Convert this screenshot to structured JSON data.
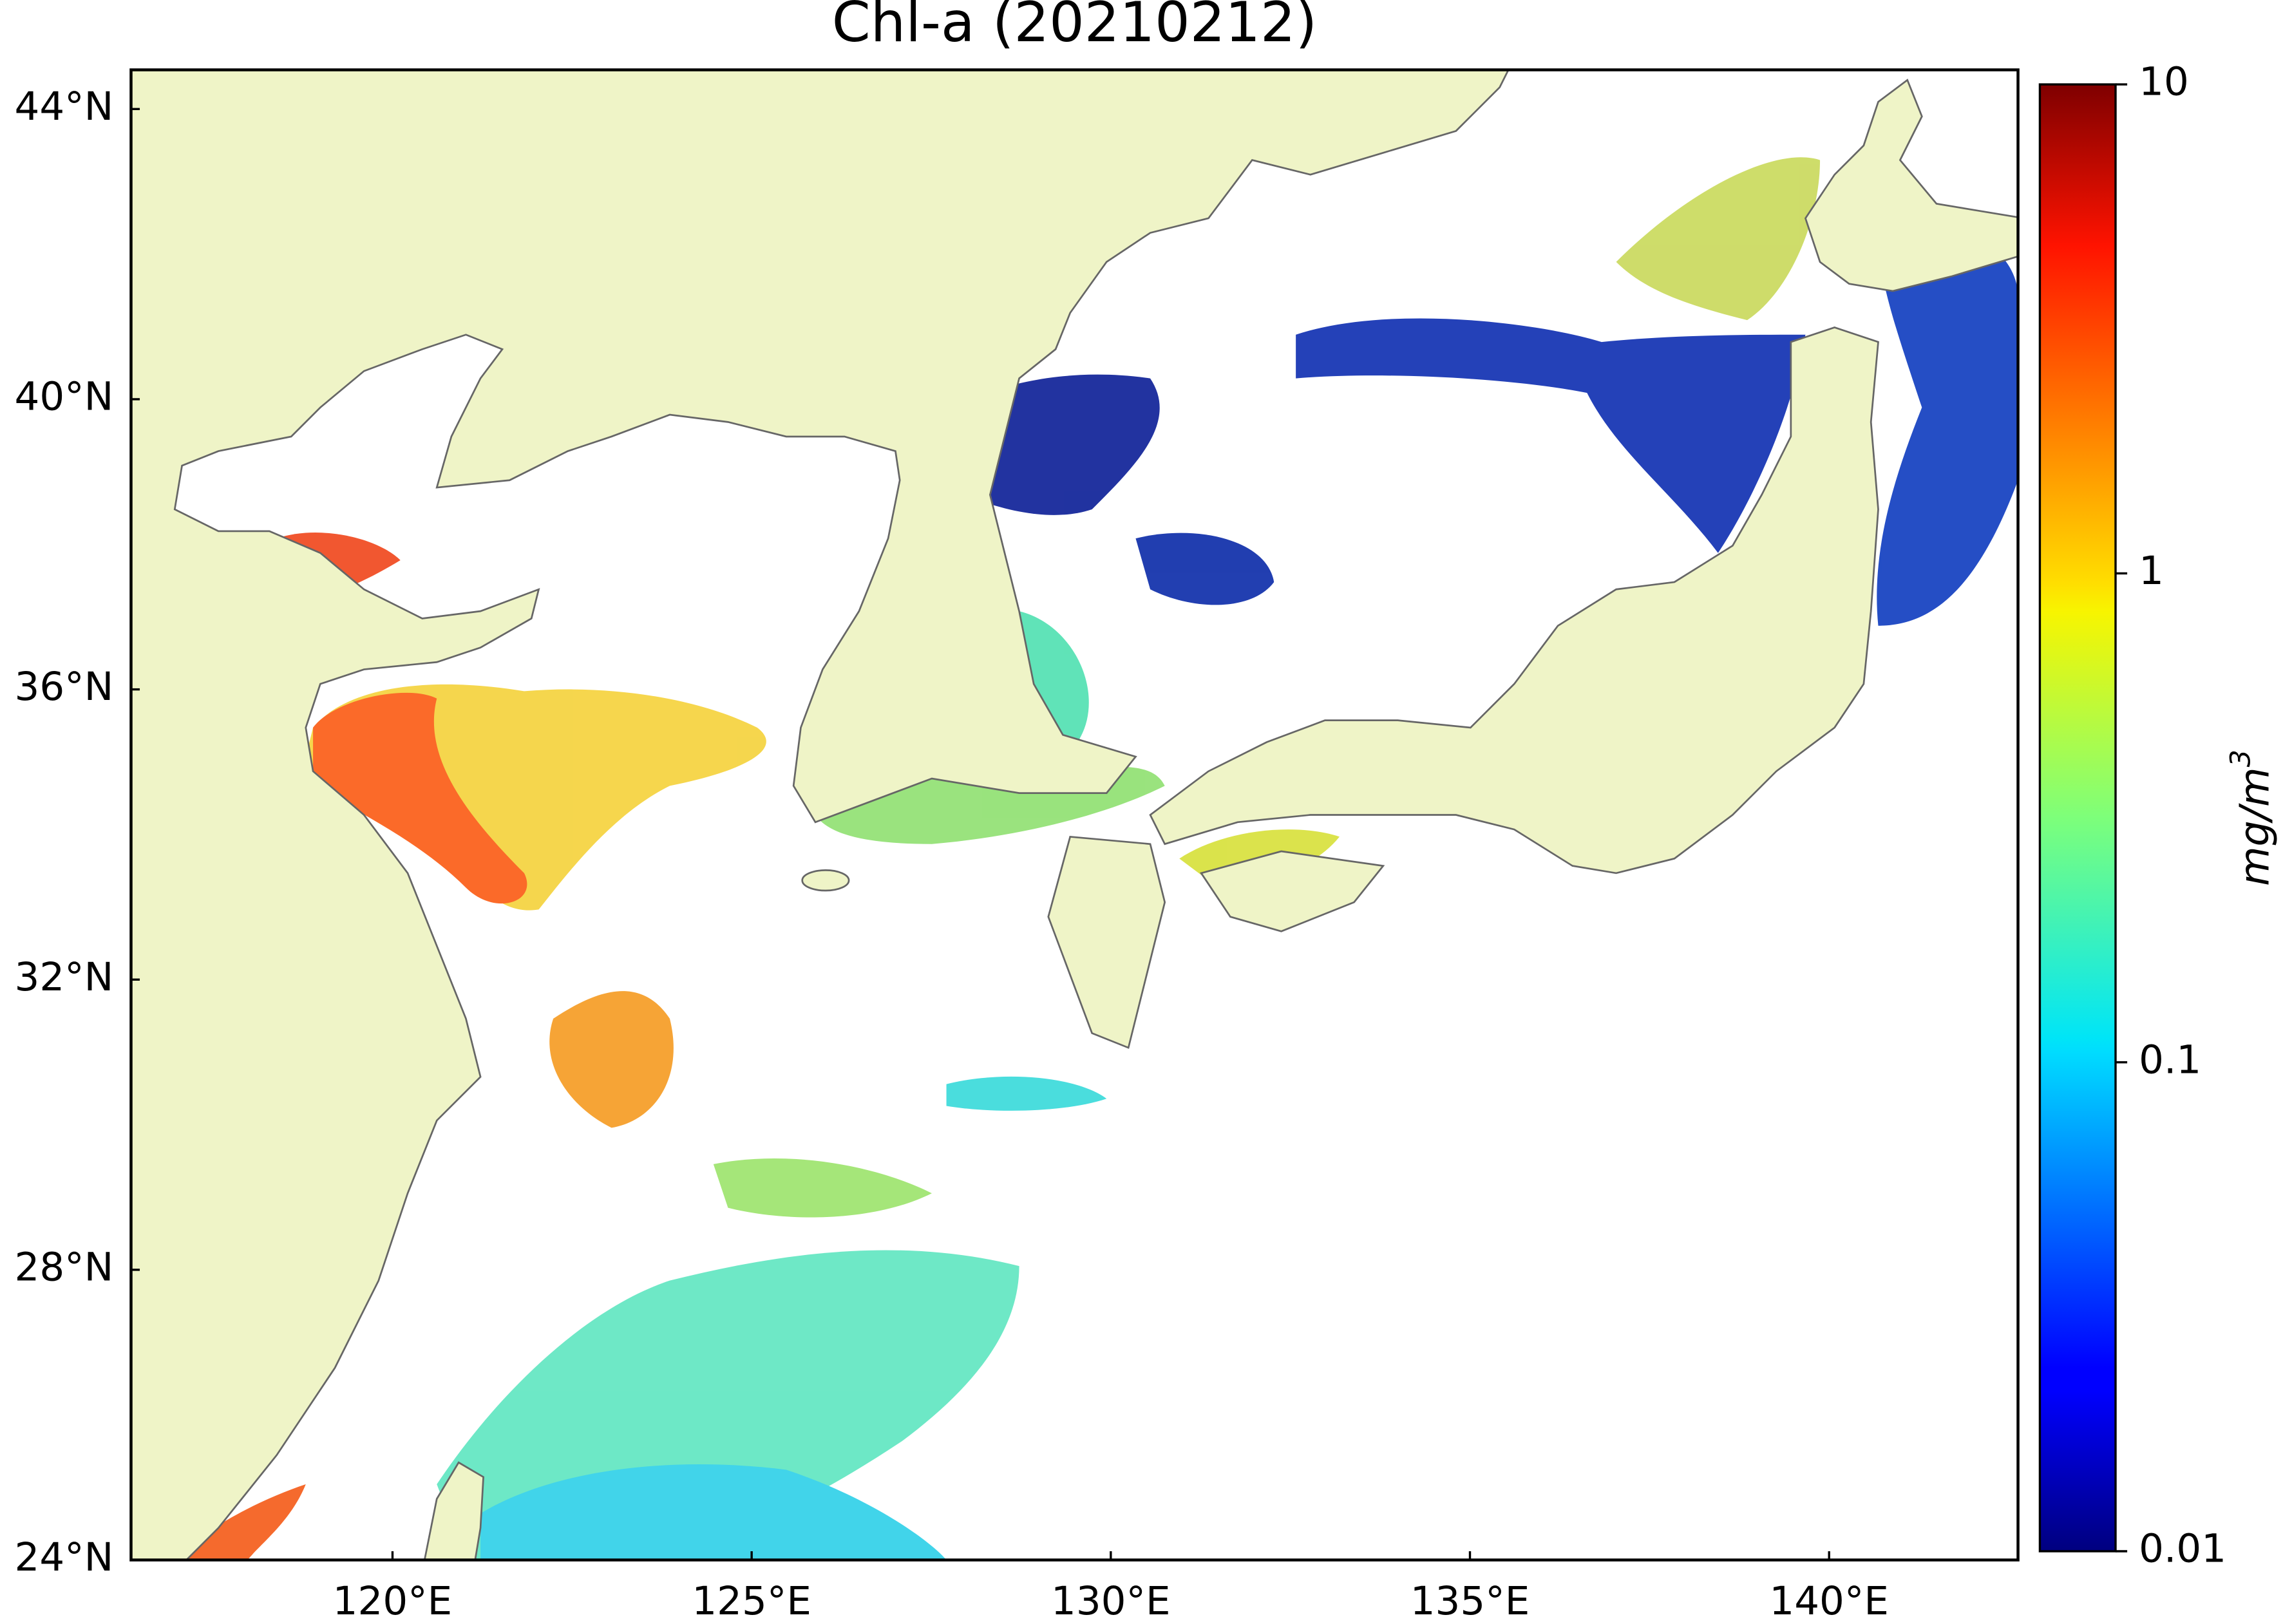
{
  "chart_data": {
    "type": "map",
    "title": "Chl-a (20210212)",
    "xlim": [
      116.36,
      142.63
    ],
    "ylim": [
      24,
      44.54
    ],
    "xticks": [
      {
        "value": 120,
        "label": "120°E"
      },
      {
        "value": 125,
        "label": "125°E"
      },
      {
        "value": 130,
        "label": "130°E"
      },
      {
        "value": 135,
        "label": "135°E"
      },
      {
        "value": 140,
        "label": "140°E"
      }
    ],
    "yticks": [
      {
        "value": 24,
        "label": "24°N"
      },
      {
        "value": 28,
        "label": "28°N"
      },
      {
        "value": 32,
        "label": "32°N"
      },
      {
        "value": 36,
        "label": "36°N"
      },
      {
        "value": 40,
        "label": "40°N"
      },
      {
        "value": 44,
        "label": "44°N"
      }
    ],
    "colorbar": {
      "scale": "log",
      "lim": [
        0.01,
        10
      ],
      "ticks": [
        0.01,
        0.1,
        1,
        10
      ],
      "colormap": "jet",
      "label": {
        "base": "mg/m",
        "exponent": "3"
      }
    }
  }
}
